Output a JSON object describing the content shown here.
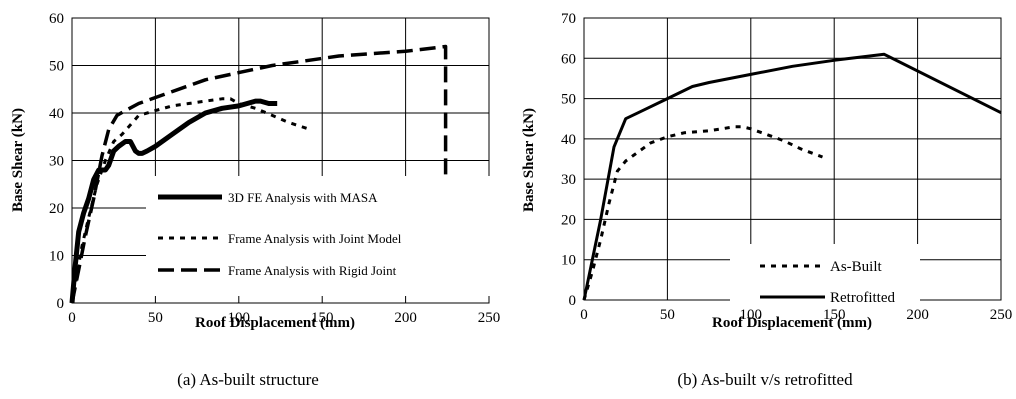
{
  "chart_data": [
    {
      "type": "line",
      "caption": "(a) As-built structure",
      "xlabel": "Roof Displacement (mm)",
      "ylabel": "Base Shear (kN)",
      "xlim": [
        0,
        250
      ],
      "ylim": [
        0,
        60
      ],
      "xticks": [
        "0",
        "50",
        "100",
        "150",
        "200",
        "250"
      ],
      "yticks": [
        "0",
        "10",
        "20",
        "30",
        "40",
        "50",
        "60"
      ],
      "grid": true,
      "legend_position": "bottom-right",
      "series": [
        {
          "name": "3D FE Analysis with MASA",
          "style": "solid-thick",
          "x": [
            0,
            2,
            4,
            7,
            10,
            13,
            16,
            20,
            22,
            25,
            28,
            32,
            35,
            38,
            40,
            42,
            45,
            50,
            60,
            70,
            80,
            90,
            100,
            110,
            113,
            118,
            123
          ],
          "y": [
            0,
            8,
            15,
            19,
            22,
            26,
            28,
            28,
            29,
            32,
            33,
            34,
            34,
            32,
            31.5,
            31.5,
            32,
            33,
            35.5,
            38,
            40,
            41,
            41.5,
            42.5,
            42.5,
            42,
            42
          ]
        },
        {
          "name": "Frame Analysis with Joint Model",
          "style": "short-dash",
          "x": [
            0,
            3,
            6,
            10,
            15,
            20,
            25,
            30,
            35,
            40,
            50,
            60,
            70,
            80,
            90,
            95,
            100,
            110,
            120,
            130,
            143
          ],
          "y": [
            0,
            6,
            12,
            18,
            25,
            30,
            34,
            35.5,
            37.5,
            39.5,
            40.5,
            41.5,
            42,
            42.5,
            43,
            43,
            42,
            41,
            39.5,
            38,
            36.5
          ]
        },
        {
          "name": "Frame Analysis with Rigid Joint",
          "style": "long-dash",
          "x": [
            0,
            4,
            8,
            13,
            18,
            22,
            27,
            32,
            40,
            60,
            80,
            100,
            120,
            140,
            160,
            180,
            200,
            224,
            224
          ],
          "y": [
            0,
            7,
            14,
            22,
            31,
            36.5,
            39.5,
            40.5,
            42,
            44.5,
            47,
            48.5,
            50,
            51,
            52,
            52.5,
            53,
            54,
            27
          ]
        }
      ]
    },
    {
      "type": "line",
      "caption": "(b) As-built v/s retrofitted",
      "xlabel": "Roof Displacement (mm)",
      "ylabel": "Base Shear (kN)",
      "xlim": [
        0,
        250
      ],
      "ylim": [
        0,
        70
      ],
      "xticks": [
        "0",
        "50",
        "100",
        "150",
        "200",
        "250"
      ],
      "yticks": [
        "0",
        "10",
        "20",
        "30",
        "40",
        "50",
        "60",
        "70"
      ],
      "grid": true,
      "legend_position": "bottom-center",
      "series": [
        {
          "name": "As-Built",
          "style": "short-dash",
          "x": [
            0,
            5,
            10,
            15,
            20,
            25,
            30,
            40,
            50,
            60,
            75,
            90,
            95,
            100,
            110,
            120,
            130,
            143
          ],
          "y": [
            0,
            7,
            15,
            24,
            32,
            34.5,
            36,
            39,
            40.5,
            41.5,
            42,
            43,
            43,
            42.5,
            41,
            39.5,
            37.5,
            35.5
          ]
        },
        {
          "name": "Retrofitted",
          "style": "solid",
          "x": [
            0,
            10,
            18,
            25,
            35,
            50,
            65,
            75,
            100,
            125,
            150,
            180,
            250
          ],
          "y": [
            0,
            20,
            38,
            45,
            47,
            50,
            53,
            54,
            56,
            58,
            59.5,
            61,
            46.5
          ]
        }
      ]
    }
  ]
}
